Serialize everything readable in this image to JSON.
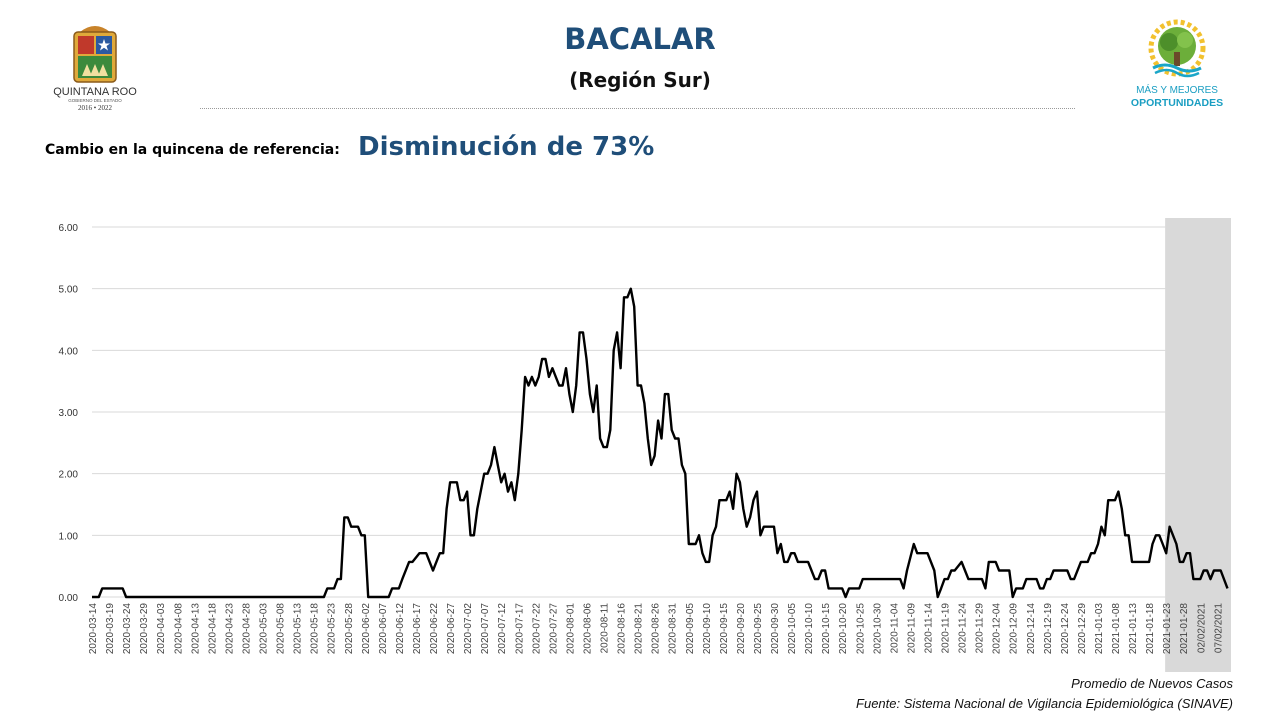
{
  "header": {
    "title": "BACALAR",
    "subtitle": "(Región Sur)",
    "left_logo": {
      "line1": "QUINTANA ROO",
      "line2": "GOBIERNO DEL ESTADO",
      "line3": "2016 • 2022"
    },
    "right_logo": {
      "line1": "MÁS Y MEJORES",
      "line2": "OPORTUNIDADES"
    }
  },
  "change": {
    "label": "Cambio en la quincena de referencia:",
    "value": "Disminución de 73%"
  },
  "footer": {
    "series_note": "Promedio de Nuevos Casos",
    "source": "Fuente: Sistema Nacional de Vigilancia Epidemiológica (SINAVE)"
  },
  "colors": {
    "title": "#1f4e79",
    "line": "#000000",
    "highlight": "#d9d9d9",
    "grid": "#d9d9d9"
  },
  "chart_data": {
    "type": "line",
    "ylim": [
      0,
      6
    ],
    "yticks": [
      "0.00",
      "1.00",
      "2.00",
      "3.00",
      "4.00",
      "5.00",
      "6.00"
    ],
    "grid": "horizontal",
    "highlight_range": [
      "2021-01-23",
      "2021-02-09"
    ],
    "x_ticks": [
      "2020-03-14",
      "2020-03-19",
      "2020-03-24",
      "2020-03-29",
      "2020-04-03",
      "2020-04-08",
      "2020-04-13",
      "2020-04-18",
      "2020-04-23",
      "2020-04-28",
      "2020-05-03",
      "2020-05-08",
      "2020-05-13",
      "2020-05-18",
      "2020-05-23",
      "2020-05-28",
      "2020-06-02",
      "2020-06-07",
      "2020-06-12",
      "2020-06-17",
      "2020-06-22",
      "2020-06-27",
      "2020-07-02",
      "2020-07-07",
      "2020-07-12",
      "2020-07-17",
      "2020-07-22",
      "2020-07-27",
      "2020-08-01",
      "2020-08-06",
      "2020-08-11",
      "2020-08-16",
      "2020-08-21",
      "2020-08-26",
      "2020-08-31",
      "2020-09-05",
      "2020-09-10",
      "2020-09-15",
      "2020-09-20",
      "2020-09-25",
      "2020-09-30",
      "2020-10-05",
      "2020-10-10",
      "2020-10-15",
      "2020-10-20",
      "2020-10-25",
      "2020-10-30",
      "2020-11-04",
      "2020-11-09",
      "2020-11-14",
      "2020-11-19",
      "2020-11-24",
      "2020-11-29",
      "2020-12-04",
      "2020-12-09",
      "2020-12-14",
      "2020-12-19",
      "2020-12-24",
      "2020-12-29",
      "2021-01-03",
      "2021-01-08",
      "2021-01-13",
      "2021-01-18",
      "2021-01-23",
      "2021-01-28",
      "02/02/2021",
      "07/02/2021"
    ],
    "series": [
      {
        "start": "2020-03-14",
        "points": [
          [
            "2020-03-14",
            0
          ],
          [
            "2020-03-16",
            0
          ],
          [
            "2020-03-17",
            0.14
          ],
          [
            "2020-03-23",
            0.14
          ],
          [
            "2020-03-24",
            0
          ],
          [
            "2020-05-21",
            0
          ],
          [
            "2020-05-22",
            0.14
          ],
          [
            "2020-05-24",
            0.14
          ],
          [
            "2020-05-25",
            0.29
          ],
          [
            "2020-05-26",
            0.29
          ],
          [
            "2020-05-27",
            1.29
          ],
          [
            "2020-05-28",
            1.29
          ],
          [
            "2020-05-29",
            1.14
          ],
          [
            "2020-05-31",
            1.14
          ],
          [
            "2020-06-01",
            1.0
          ],
          [
            "2020-06-02",
            1.0
          ],
          [
            "2020-06-03",
            0
          ],
          [
            "2020-06-09",
            0
          ],
          [
            "2020-06-10",
            0.14
          ],
          [
            "2020-06-12",
            0.14
          ],
          [
            "2020-06-13",
            0.29
          ],
          [
            "2020-06-15",
            0.57
          ],
          [
            "2020-06-16",
            0.57
          ],
          [
            "2020-06-18",
            0.71
          ],
          [
            "2020-06-20",
            0.71
          ],
          [
            "2020-06-22",
            0.43
          ],
          [
            "2020-06-24",
            0.71
          ],
          [
            "2020-06-25",
            0.71
          ],
          [
            "2020-06-26",
            1.43
          ],
          [
            "2020-06-27",
            1.86
          ],
          [
            "2020-06-29",
            1.86
          ],
          [
            "2020-06-30",
            1.57
          ],
          [
            "2020-07-01",
            1.57
          ],
          [
            "2020-07-02",
            1.71
          ],
          [
            "2020-07-03",
            1.0
          ],
          [
            "2020-07-04",
            1.0
          ],
          [
            "2020-07-05",
            1.43
          ],
          [
            "2020-07-07",
            2.0
          ],
          [
            "2020-07-08",
            2.0
          ],
          [
            "2020-07-09",
            2.14
          ],
          [
            "2020-07-10",
            2.43
          ],
          [
            "2020-07-11",
            2.14
          ],
          [
            "2020-07-12",
            1.86
          ],
          [
            "2020-07-13",
            2.0
          ],
          [
            "2020-07-14",
            1.71
          ],
          [
            "2020-07-15",
            1.86
          ],
          [
            "2020-07-16",
            1.57
          ],
          [
            "2020-07-17",
            2.0
          ],
          [
            "2020-07-18",
            2.71
          ],
          [
            "2020-07-19",
            3.57
          ],
          [
            "2020-07-20",
            3.43
          ],
          [
            "2020-07-21",
            3.57
          ],
          [
            "2020-07-22",
            3.43
          ],
          [
            "2020-07-23",
            3.57
          ],
          [
            "2020-07-24",
            3.86
          ],
          [
            "2020-07-25",
            3.86
          ],
          [
            "2020-07-26",
            3.57
          ],
          [
            "2020-07-27",
            3.71
          ],
          [
            "2020-07-28",
            3.57
          ],
          [
            "2020-07-29",
            3.43
          ],
          [
            "2020-07-30",
            3.43
          ],
          [
            "2020-07-31",
            3.71
          ],
          [
            "2020-08-01",
            3.29
          ],
          [
            "2020-08-02",
            3.0
          ],
          [
            "2020-08-03",
            3.43
          ],
          [
            "2020-08-04",
            4.29
          ],
          [
            "2020-08-05",
            4.29
          ],
          [
            "2020-08-06",
            3.86
          ],
          [
            "2020-08-07",
            3.29
          ],
          [
            "2020-08-08",
            3.0
          ],
          [
            "2020-08-09",
            3.43
          ],
          [
            "2020-08-10",
            2.57
          ],
          [
            "2020-08-11",
            2.43
          ],
          [
            "2020-08-12",
            2.43
          ],
          [
            "2020-08-13",
            2.71
          ],
          [
            "2020-08-14",
            4.0
          ],
          [
            "2020-08-15",
            4.29
          ],
          [
            "2020-08-16",
            3.71
          ],
          [
            "2020-08-17",
            4.86
          ],
          [
            "2020-08-18",
            4.86
          ],
          [
            "2020-08-19",
            5.0
          ],
          [
            "2020-08-20",
            4.71
          ],
          [
            "2020-08-21",
            3.43
          ],
          [
            "2020-08-22",
            3.43
          ],
          [
            "2020-08-23",
            3.14
          ],
          [
            "2020-08-24",
            2.57
          ],
          [
            "2020-08-25",
            2.14
          ],
          [
            "2020-08-26",
            2.29
          ],
          [
            "2020-08-27",
            2.86
          ],
          [
            "2020-08-28",
            2.57
          ],
          [
            "2020-08-29",
            3.29
          ],
          [
            "2020-08-30",
            3.29
          ],
          [
            "2020-08-31",
            2.71
          ],
          [
            "2020-09-01",
            2.57
          ],
          [
            "2020-09-02",
            2.57
          ],
          [
            "2020-09-03",
            2.14
          ],
          [
            "2020-09-04",
            2.0
          ],
          [
            "2020-09-05",
            0.86
          ],
          [
            "2020-09-07",
            0.86
          ],
          [
            "2020-09-08",
            1.0
          ],
          [
            "2020-09-09",
            0.71
          ],
          [
            "2020-09-10",
            0.57
          ],
          [
            "2020-09-11",
            0.57
          ],
          [
            "2020-09-12",
            1.0
          ],
          [
            "2020-09-13",
            1.14
          ],
          [
            "2020-09-14",
            1.57
          ],
          [
            "2020-09-16",
            1.57
          ],
          [
            "2020-09-17",
            1.71
          ],
          [
            "2020-09-18",
            1.43
          ],
          [
            "2020-09-19",
            2.0
          ],
          [
            "2020-09-20",
            1.86
          ],
          [
            "2020-09-21",
            1.43
          ],
          [
            "2020-09-22",
            1.14
          ],
          [
            "2020-09-23",
            1.29
          ],
          [
            "2020-09-24",
            1.57
          ],
          [
            "2020-09-25",
            1.71
          ],
          [
            "2020-09-26",
            1.0
          ],
          [
            "2020-09-27",
            1.14
          ],
          [
            "2020-09-30",
            1.14
          ],
          [
            "2020-10-01",
            0.71
          ],
          [
            "2020-10-02",
            0.86
          ],
          [
            "2020-10-03",
            0.57
          ],
          [
            "2020-10-04",
            0.57
          ],
          [
            "2020-10-05",
            0.71
          ],
          [
            "2020-10-06",
            0.71
          ],
          [
            "2020-10-07",
            0.57
          ],
          [
            "2020-10-10",
            0.57
          ],
          [
            "2020-10-11",
            0.43
          ],
          [
            "2020-10-12",
            0.29
          ],
          [
            "2020-10-13",
            0.29
          ],
          [
            "2020-10-14",
            0.43
          ],
          [
            "2020-10-15",
            0.43
          ],
          [
            "2020-10-16",
            0.14
          ],
          [
            "2020-10-20",
            0.14
          ],
          [
            "2020-10-21",
            0
          ],
          [
            "2020-10-22",
            0.14
          ],
          [
            "2020-10-25",
            0.14
          ],
          [
            "2020-10-26",
            0.29
          ],
          [
            "2020-11-06",
            0.29
          ],
          [
            "2020-11-07",
            0.14
          ],
          [
            "2020-11-08",
            0.43
          ],
          [
            "2020-11-10",
            0.86
          ],
          [
            "2020-11-11",
            0.71
          ],
          [
            "2020-11-14",
            0.71
          ],
          [
            "2020-11-16",
            0.43
          ],
          [
            "2020-11-17",
            0
          ],
          [
            "2020-11-18",
            0.14
          ],
          [
            "2020-11-19",
            0.29
          ],
          [
            "2020-11-20",
            0.29
          ],
          [
            "2020-11-21",
            0.43
          ],
          [
            "2020-11-22",
            0.43
          ],
          [
            "2020-11-24",
            0.57
          ],
          [
            "2020-11-25",
            0.43
          ],
          [
            "2020-11-26",
            0.29
          ],
          [
            "2020-11-30",
            0.29
          ],
          [
            "2020-12-01",
            0.14
          ],
          [
            "2020-12-02",
            0.57
          ],
          [
            "2020-12-04",
            0.57
          ],
          [
            "2020-12-05",
            0.43
          ],
          [
            "2020-12-08",
            0.43
          ],
          [
            "2020-12-09",
            0
          ],
          [
            "2020-12-10",
            0.14
          ],
          [
            "2020-12-12",
            0.14
          ],
          [
            "2020-12-13",
            0.29
          ],
          [
            "2020-12-16",
            0.29
          ],
          [
            "2020-12-17",
            0.14
          ],
          [
            "2020-12-18",
            0.14
          ],
          [
            "2020-12-19",
            0.29
          ],
          [
            "2020-12-20",
            0.29
          ],
          [
            "2020-12-21",
            0.43
          ],
          [
            "2020-12-25",
            0.43
          ],
          [
            "2020-12-26",
            0.29
          ],
          [
            "2020-12-27",
            0.29
          ],
          [
            "2020-12-29",
            0.57
          ],
          [
            "2020-12-31",
            0.57
          ],
          [
            "2021-01-01",
            0.71
          ],
          [
            "2021-01-02",
            0.71
          ],
          [
            "2021-01-03",
            0.86
          ],
          [
            "2021-01-04",
            1.14
          ],
          [
            "2021-01-05",
            1.0
          ],
          [
            "2021-01-06",
            1.57
          ],
          [
            "2021-01-08",
            1.57
          ],
          [
            "2021-01-09",
            1.71
          ],
          [
            "2021-01-10",
            1.43
          ],
          [
            "2021-01-11",
            1.0
          ],
          [
            "2021-01-12",
            1.0
          ],
          [
            "2021-01-13",
            0.57
          ],
          [
            "2021-01-18",
            0.57
          ],
          [
            "2021-01-19",
            0.86
          ],
          [
            "2021-01-20",
            1.0
          ],
          [
            "2021-01-21",
            1.0
          ],
          [
            "2021-01-22",
            0.86
          ],
          [
            "2021-01-23",
            0.71
          ],
          [
            "2021-01-24",
            1.14
          ],
          [
            "2021-01-25",
            1.0
          ],
          [
            "2021-01-26",
            0.86
          ],
          [
            "2021-01-27",
            0.57
          ],
          [
            "2021-01-28",
            0.57
          ],
          [
            "2021-01-29",
            0.71
          ],
          [
            "2021-01-30",
            0.71
          ],
          [
            "2021-01-31",
            0.29
          ],
          [
            "2021-02-02",
            0.29
          ],
          [
            "2021-02-03",
            0.43
          ],
          [
            "2021-02-04",
            0.43
          ],
          [
            "2021-02-05",
            0.29
          ],
          [
            "2021-02-06",
            0.43
          ],
          [
            "2021-02-08",
            0.43
          ],
          [
            "2021-02-10",
            0.14
          ]
        ]
      }
    ]
  }
}
